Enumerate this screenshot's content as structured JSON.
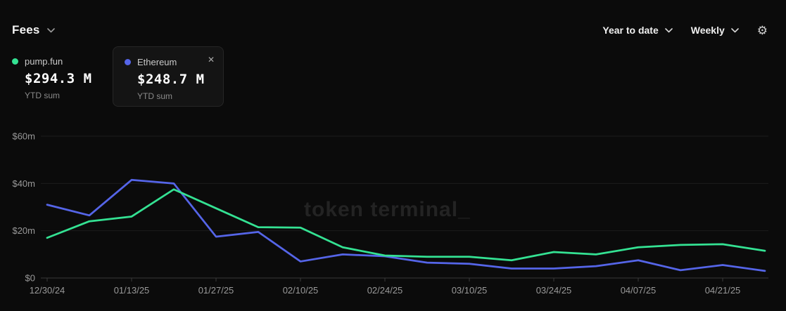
{
  "header": {
    "title": "Fees",
    "range_label": "Year to date",
    "interval_label": "Weekly"
  },
  "legend": [
    {
      "name": "pump.fun",
      "value": "$294.3 M",
      "caption": "YTD sum",
      "color": "#34e293"
    },
    {
      "name": "Ethereum",
      "value": "$248.7 M",
      "caption": "YTD sum",
      "color": "#5565e8"
    }
  ],
  "watermark": "token terminal_",
  "colors": {
    "background": "#0b0b0b",
    "grid_line": "#1d1d1d",
    "axis_line": "#3a3a3a",
    "axis_text": "#999999",
    "pump_fun": "#34e293",
    "ethereum": "#5565e8"
  },
  "chart_data": {
    "type": "line",
    "title": "Fees",
    "unit": "USD millions per week",
    "x": [
      "12/30/24",
      "01/06/25",
      "01/13/25",
      "01/20/25",
      "01/27/25",
      "02/03/25",
      "02/10/25",
      "02/17/25",
      "02/24/25",
      "03/03/25",
      "03/10/25",
      "03/17/25",
      "03/24/25",
      "03/31/25",
      "04/07/25",
      "04/14/25",
      "04/21/25",
      "04/28/25"
    ],
    "series": [
      {
        "name": "pump.fun",
        "color": "#34e293",
        "values": [
          17,
          24,
          26,
          37.5,
          29.5,
          21.5,
          21.3,
          13,
          9.5,
          9,
          9,
          7.5,
          11,
          10,
          13,
          14,
          14.3,
          11.5
        ]
      },
      {
        "name": "Ethereum",
        "color": "#5565e8",
        "values": [
          31,
          26.5,
          41.5,
          40,
          17.5,
          19.5,
          7,
          10,
          9.2,
          6.5,
          6,
          4,
          4,
          5,
          7.5,
          3.3,
          5.5,
          3
        ]
      }
    ],
    "ylim": [
      0,
      60
    ],
    "y_ticks": [
      {
        "value": 0,
        "label": "$0"
      },
      {
        "value": 20,
        "label": "$20m"
      },
      {
        "value": 40,
        "label": "$40m"
      },
      {
        "value": 60,
        "label": "$60m"
      }
    ],
    "x_tick_indices": [
      0,
      2,
      4,
      6,
      8,
      10,
      12,
      14,
      16
    ],
    "grid": "horizontal",
    "legend_position": "top-left"
  }
}
